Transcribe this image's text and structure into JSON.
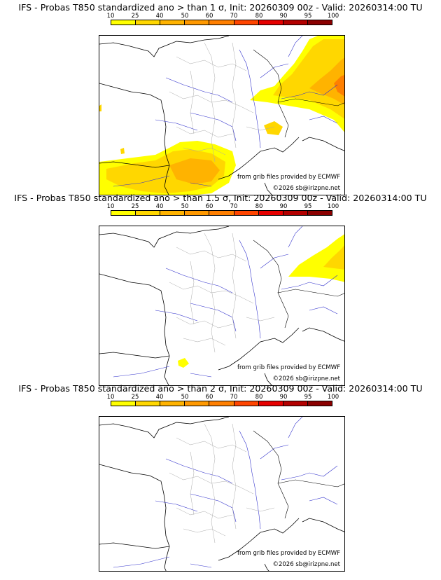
{
  "scale": {
    "labels": [
      "10",
      "25",
      "40",
      "50",
      "60",
      "70",
      "80",
      "90",
      "95",
      "100"
    ],
    "colors": [
      "#ffff00",
      "#ffd700",
      "#ffb300",
      "#ff9900",
      "#ff7f00",
      "#ff4500",
      "#e60000",
      "#b30000",
      "#8b0000",
      "#4d0000"
    ]
  },
  "credits": {
    "source": "from grib files provided by ECMWF",
    "copyright": "©2026 sb@irizpne.net"
  },
  "panels": [
    {
      "title": "IFS - Probas T850  standardized ano > than 1 σ, Init: 20260309 00z - Valid: 20260314:00 TU"
    },
    {
      "title": "IFS - Probas T850  standardized ano > than 1.5 σ, Init: 20260309 00z - Valid: 20260314:00 TU"
    },
    {
      "title": "IFS - Probas T850  standardized ano > than 2 σ, Init: 20260309 00z - Valid: 20260314:00 TU"
    }
  ],
  "colors": {
    "coast": "#000000",
    "rivers": "#3333cc",
    "borders": "#aaaaaa"
  }
}
